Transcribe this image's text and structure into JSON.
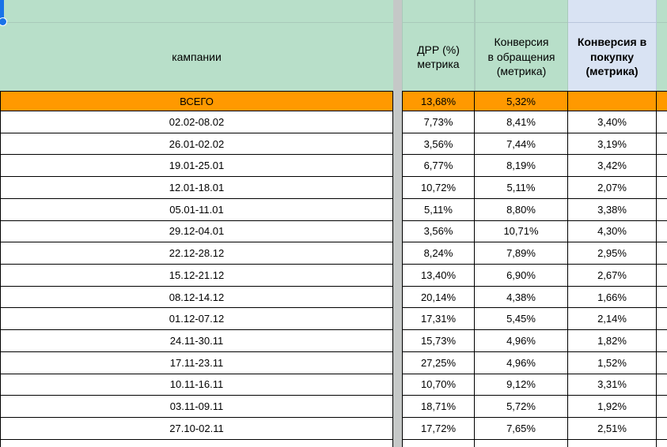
{
  "app": {
    "type": "spreadsheet-grid"
  },
  "colors": {
    "header_green": "#b8dfc9",
    "header_blue": "#d9e3f3",
    "total_orange": "#ff9900",
    "divider_gray": "#c5c8c7",
    "selection_blue": "#1a73e8"
  },
  "table": {
    "headers": {
      "campaign": "кампании",
      "drr": "ДРР (%)\nметрика",
      "conv_inquiries": "Конверсия\nв обращения\n(метрика)",
      "conv_purchase": "Конверсия в\nпокупку\n(метрика)"
    },
    "total": {
      "label": "ВСЕГО",
      "drr": "13,68%",
      "conv_inquiries": "5,32%",
      "conv_purchase": ""
    },
    "rows": [
      {
        "campaign": "02.02-08.02",
        "drr": "7,73%",
        "conv_inquiries": "8,41%",
        "conv_purchase": "3,40%"
      },
      {
        "campaign": "26.01-02.02",
        "drr": "3,56%",
        "conv_inquiries": "7,44%",
        "conv_purchase": "3,19%"
      },
      {
        "campaign": "19.01-25.01",
        "drr": "6,77%",
        "conv_inquiries": "8,19%",
        "conv_purchase": "3,42%"
      },
      {
        "campaign": "12.01-18.01",
        "drr": "10,72%",
        "conv_inquiries": "5,11%",
        "conv_purchase": "2,07%"
      },
      {
        "campaign": "05.01-11.01",
        "drr": "5,11%",
        "conv_inquiries": "8,80%",
        "conv_purchase": "3,38%"
      },
      {
        "campaign": "29.12-04.01",
        "drr": "3,56%",
        "conv_inquiries": "10,71%",
        "conv_purchase": "4,30%"
      },
      {
        "campaign": "22.12-28.12",
        "drr": "8,24%",
        "conv_inquiries": "7,89%",
        "conv_purchase": "2,95%"
      },
      {
        "campaign": "15.12-21.12",
        "drr": "13,40%",
        "conv_inquiries": "6,90%",
        "conv_purchase": "2,67%"
      },
      {
        "campaign": "08.12-14.12",
        "drr": "20,14%",
        "conv_inquiries": "4,38%",
        "conv_purchase": "1,66%"
      },
      {
        "campaign": "01.12-07.12",
        "drr": "17,31%",
        "conv_inquiries": "5,45%",
        "conv_purchase": "2,14%"
      },
      {
        "campaign": "24.11-30.11",
        "drr": "15,73%",
        "conv_inquiries": "4,96%",
        "conv_purchase": "1,82%"
      },
      {
        "campaign": "17.11-23.11",
        "drr": "27,25%",
        "conv_inquiries": "4,96%",
        "conv_purchase": "1,52%"
      },
      {
        "campaign": "10.11-16.11",
        "drr": "10,70%",
        "conv_inquiries": "9,12%",
        "conv_purchase": "3,31%"
      },
      {
        "campaign": "03.11-09.11",
        "drr": "18,71%",
        "conv_inquiries": "5,72%",
        "conv_purchase": "1,92%"
      },
      {
        "campaign": "27.10-02.11",
        "drr": "17,72%",
        "conv_inquiries": "7,65%",
        "conv_purchase": "2,51%"
      }
    ]
  }
}
